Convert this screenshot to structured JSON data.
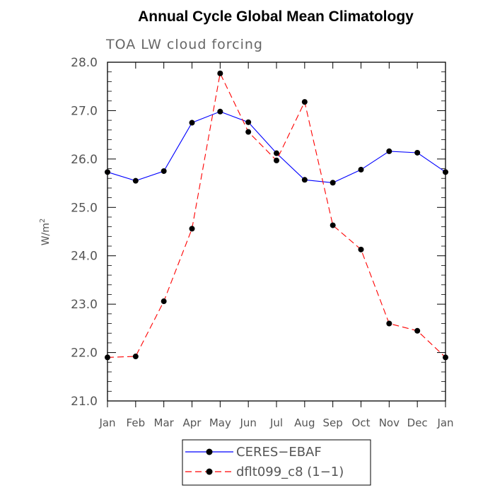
{
  "chart_data": {
    "type": "line",
    "title": "Annual Cycle Global Mean Climatology",
    "subtitle": "TOA LW cloud forcing",
    "ylabel": "W/m",
    "ylabel_superscript": "2",
    "ylim": [
      21.0,
      28.0
    ],
    "yticks": [
      "21.0",
      "22.0",
      "23.0",
      "24.0",
      "25.0",
      "26.0",
      "27.0",
      "28.0"
    ],
    "categories": [
      "Jan",
      "Feb",
      "Mar",
      "Apr",
      "May",
      "Jun",
      "Jul",
      "Aug",
      "Sep",
      "Oct",
      "Nov",
      "Dec",
      "Jan"
    ],
    "series": [
      {
        "name": "CERES−EBAF",
        "color": "#0000ff",
        "dash": "solid",
        "values": [
          25.73,
          25.55,
          25.75,
          26.75,
          26.98,
          26.76,
          26.12,
          25.57,
          25.51,
          25.78,
          26.16,
          26.13,
          25.73
        ]
      },
      {
        "name": "dflt099_c8 (1−1)",
        "color": "#ff0000",
        "dash": "dashed",
        "values": [
          21.9,
          21.92,
          23.06,
          24.56,
          27.77,
          26.56,
          25.97,
          27.18,
          24.63,
          24.13,
          22.6,
          22.45,
          21.9
        ]
      }
    ],
    "legend_position": "bottom-center"
  }
}
